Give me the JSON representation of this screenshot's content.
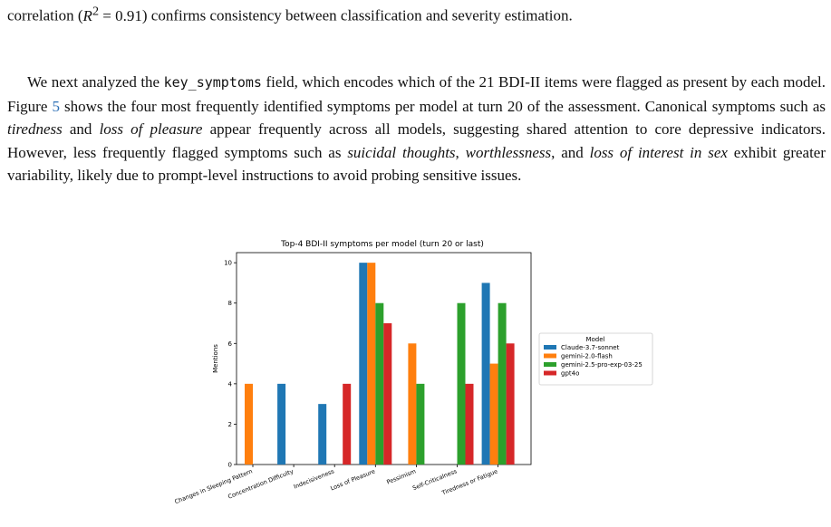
{
  "text": {
    "para0": {
      "a": "correlation (",
      "r": "R",
      "sup": "2",
      "eq": " = 0.91",
      "b": ") confirms consistency between classification and severity estimation."
    },
    "para1": {
      "a": "We next analyzed the ",
      "code": "key_symptoms",
      "b": " field, which encodes which of the 21 BDI-II items were flagged as present by each model. Figure ",
      "figref": "5",
      "c": " shows the four most frequently identified symptoms per model at turn 20 of the assessment. Canonical symptoms such as ",
      "e1": "tiredness",
      "d": " and ",
      "e2": "loss of pleasure",
      "e": " appear frequently across all models, suggesting shared attention to core depressive indicators. However, less frequently flagged symptoms such as ",
      "e3": "suicidal thoughts",
      "f": ", ",
      "e4": "worthlessness",
      "g": ", and ",
      "e5": "loss of interest in sex",
      "h": " exhibit greater variability, likely due to prompt-level instructions to avoid probing sensitive issues."
    }
  },
  "chart_data": {
    "type": "bar",
    "title": "Top-4 BDI-II symptoms per model (turn 20 or last)",
    "xlabel": "",
    "ylabel": "Mentions",
    "ylim": [
      0,
      10.5
    ],
    "yticks": [
      0,
      2,
      4,
      6,
      8,
      10
    ],
    "grid": false,
    "legend_position": "right-outside",
    "legend_title": "Model",
    "categories": [
      "Changes in Sleeping Pattern",
      "Concentration Difficulty",
      "Indecisiveness",
      "Loss of Pleasure",
      "Pessimism",
      "Self-Criticalness",
      "Tiredness or Fatigue"
    ],
    "series": [
      {
        "name": "Claude-3.7-sonnet",
        "color": "#1f77b4",
        "values": [
          0,
          4,
          3,
          10,
          0,
          0,
          9
        ]
      },
      {
        "name": "gemini-2.0-flash",
        "color": "#ff7f0e",
        "values": [
          4,
          0,
          0,
          10,
          6,
          0,
          5
        ]
      },
      {
        "name": "gemini-2.5-pro-exp-03-25",
        "color": "#2ca02c",
        "values": [
          0,
          0,
          0,
          8,
          4,
          8,
          8
        ]
      },
      {
        "name": "gpt4o",
        "color": "#d62728",
        "values": [
          0,
          0,
          4,
          7,
          0,
          4,
          6
        ]
      }
    ]
  }
}
